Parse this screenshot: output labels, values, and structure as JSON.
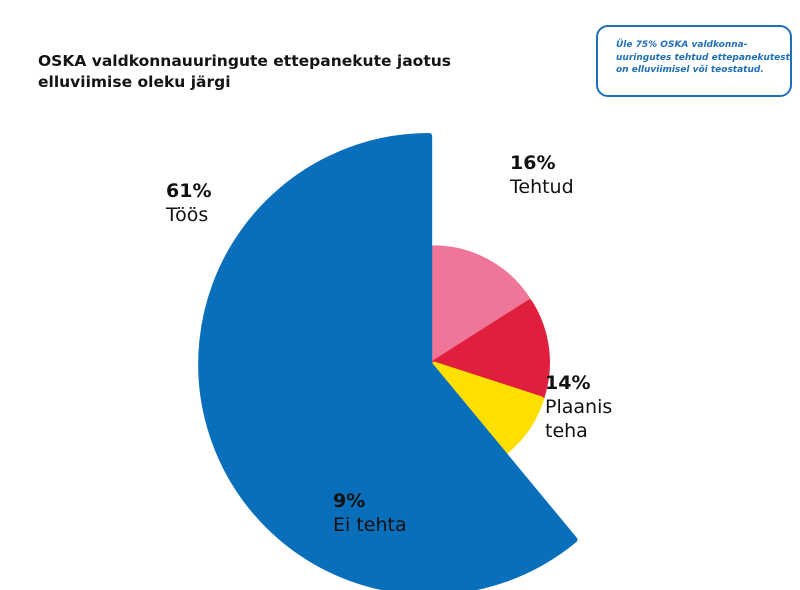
{
  "title": {
    "line1": "OSKA valdkonnauuringute ettepanekute jaotus",
    "line2": "elluviimise oleku järgi"
  },
  "note": {
    "line1": "Üle 75% OSKA valdkonna-",
    "line2": "uuringutes tehtud ettepanekutest",
    "line3": "on elluviimisel või teostatud."
  },
  "chart_data": {
    "type": "pie",
    "start_angle_deg": 0,
    "direction": "clockwise",
    "slices": [
      {
        "label": "Tehtud",
        "value": 16,
        "display": "16%",
        "color": "#ef7699"
      },
      {
        "label": "Plaanis teha",
        "value": 14,
        "display": "14%",
        "color": "#df1f3d"
      },
      {
        "label": "Ei tehta",
        "value": 9,
        "display": "9%",
        "color": "#fde000"
      },
      {
        "label": "Töös",
        "value": 61,
        "display": "61%",
        "color": "#0a6fbb"
      }
    ]
  },
  "labels": {
    "toos": {
      "pct": "61%",
      "name": "Töös"
    },
    "tehtud": {
      "pct": "16%",
      "name": "Tehtud"
    },
    "plaanis": {
      "pct": "14%",
      "line1": "Plaanis",
      "line2": "teha"
    },
    "ei_tehta": {
      "pct": "9%",
      "name": "Ei tehta"
    }
  }
}
